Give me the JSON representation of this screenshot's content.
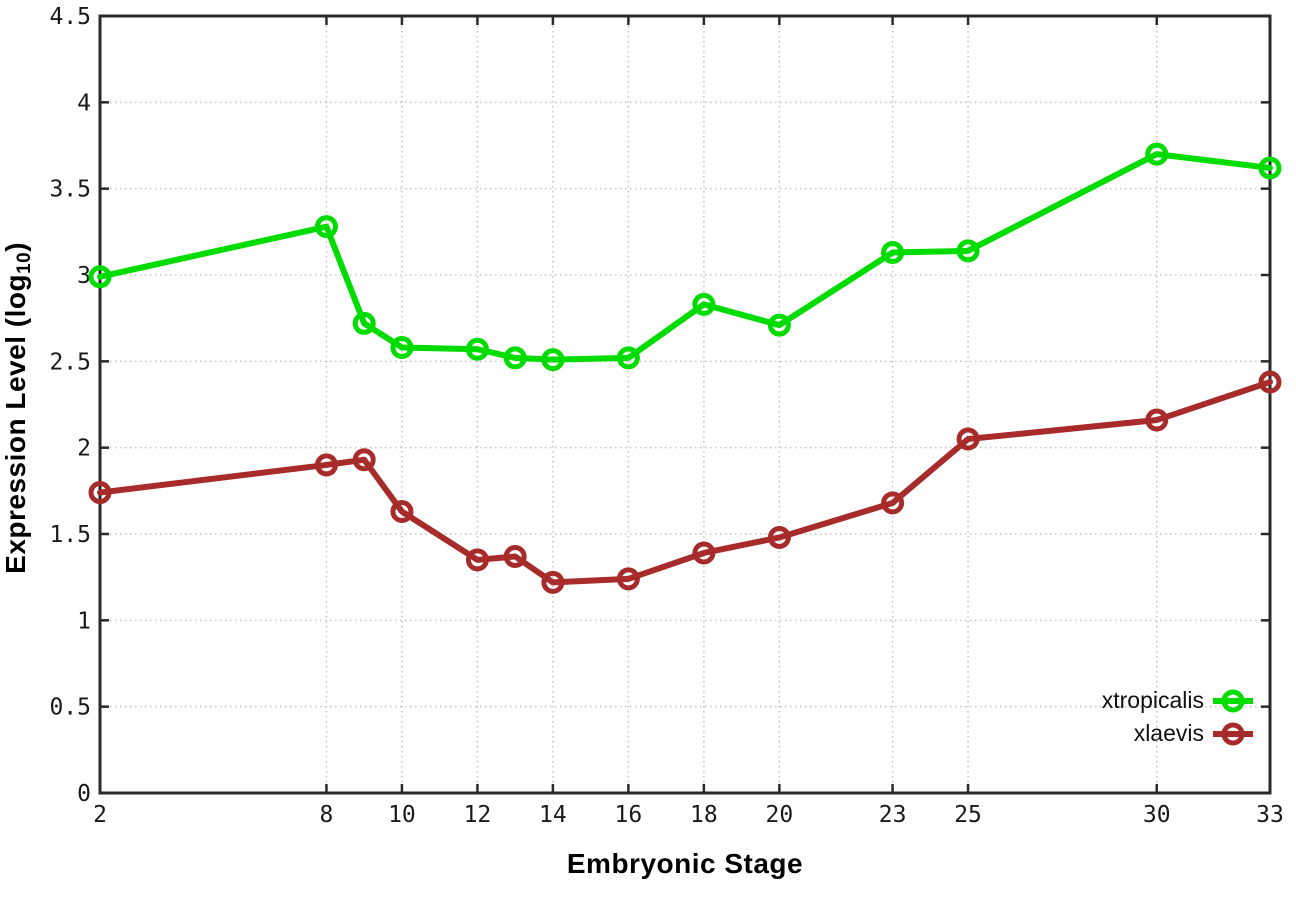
{
  "figure": {
    "ylabel": {
      "prefix": "Expression Level (log",
      "sub": "10",
      "suffix": ")"
    },
    "xlabel": "Embryonic Stage"
  },
  "chart_data": {
    "type": "line",
    "title": "",
    "xlabel": "Embryonic Stage",
    "ylabel": "Expression Level (log10)",
    "x": [
      2,
      8,
      9,
      10,
      12,
      13,
      14,
      16,
      18,
      20,
      23,
      25,
      30,
      33
    ],
    "series": [
      {
        "name": "xtropicalis",
        "color": "#00dc00",
        "values": [
          2.99,
          3.28,
          2.72,
          2.58,
          2.57,
          2.52,
          2.51,
          2.52,
          2.83,
          2.71,
          3.13,
          3.14,
          3.7,
          3.62
        ]
      },
      {
        "name": "xlaevis",
        "color": "#a82b2b",
        "values": [
          1.74,
          1.9,
          1.93,
          1.63,
          1.35,
          1.37,
          1.22,
          1.24,
          1.39,
          1.48,
          1.68,
          2.05,
          2.16,
          2.38
        ]
      }
    ],
    "xticks": [
      2,
      8,
      10,
      12,
      14,
      16,
      18,
      20,
      23,
      25,
      30,
      33
    ],
    "yticks": [
      0,
      0.5,
      1,
      1.5,
      2,
      2.5,
      3,
      3.5,
      4,
      4.5
    ],
    "xlim": [
      2,
      33
    ],
    "ylim": [
      0,
      4.5
    ],
    "grid": true,
    "legend_position": "bottom-right",
    "colors": {
      "border": "#2a2a2a",
      "grid": "#c4c4c4",
      "tick_text": "#1a1a1a"
    }
  }
}
